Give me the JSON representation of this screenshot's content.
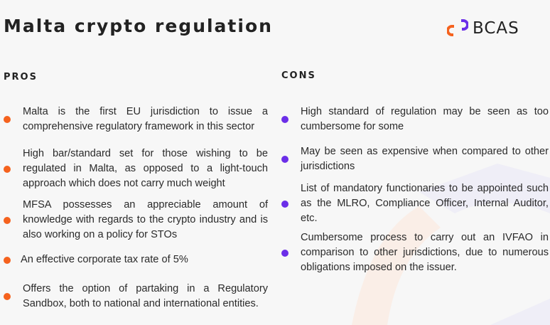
{
  "title": "Malta crypto regulation",
  "logo": {
    "text": "BCAS",
    "colors": {
      "orange": "#f5621e",
      "purple": "#6b2ee8"
    }
  },
  "pros": {
    "heading": "PROS",
    "items": [
      "Malta is the first EU jurisdiction to issue a comprehensive regulatory framework in this sector",
      "High bar/standard set for those wishing to be regulated in Malta, as opposed to a light-touch approach which does not carry much weight",
      "MFSA possesses an appreciable amount of knowledge with regards to the crypto industry and is also working on a policy for STOs",
      "An effective corporate tax rate of 5%",
      "Offers the option of partaking in a Regulatory Sandbox, both to national and international entities."
    ]
  },
  "cons": {
    "heading": "CONS",
    "items": [
      "High standard of regulation may be seen as too cumbersome for some",
      "May be seen as expensive when compared to other jurisdictions",
      "List of mandatory functionaries to be appointed such as the MLRO, Compliance Officer, Internal Auditor, etc.",
      "Cumbersome process to carry out an IVFAO in comparison to other jurisdictions, due to numerous obligations imposed on the issuer."
    ]
  }
}
